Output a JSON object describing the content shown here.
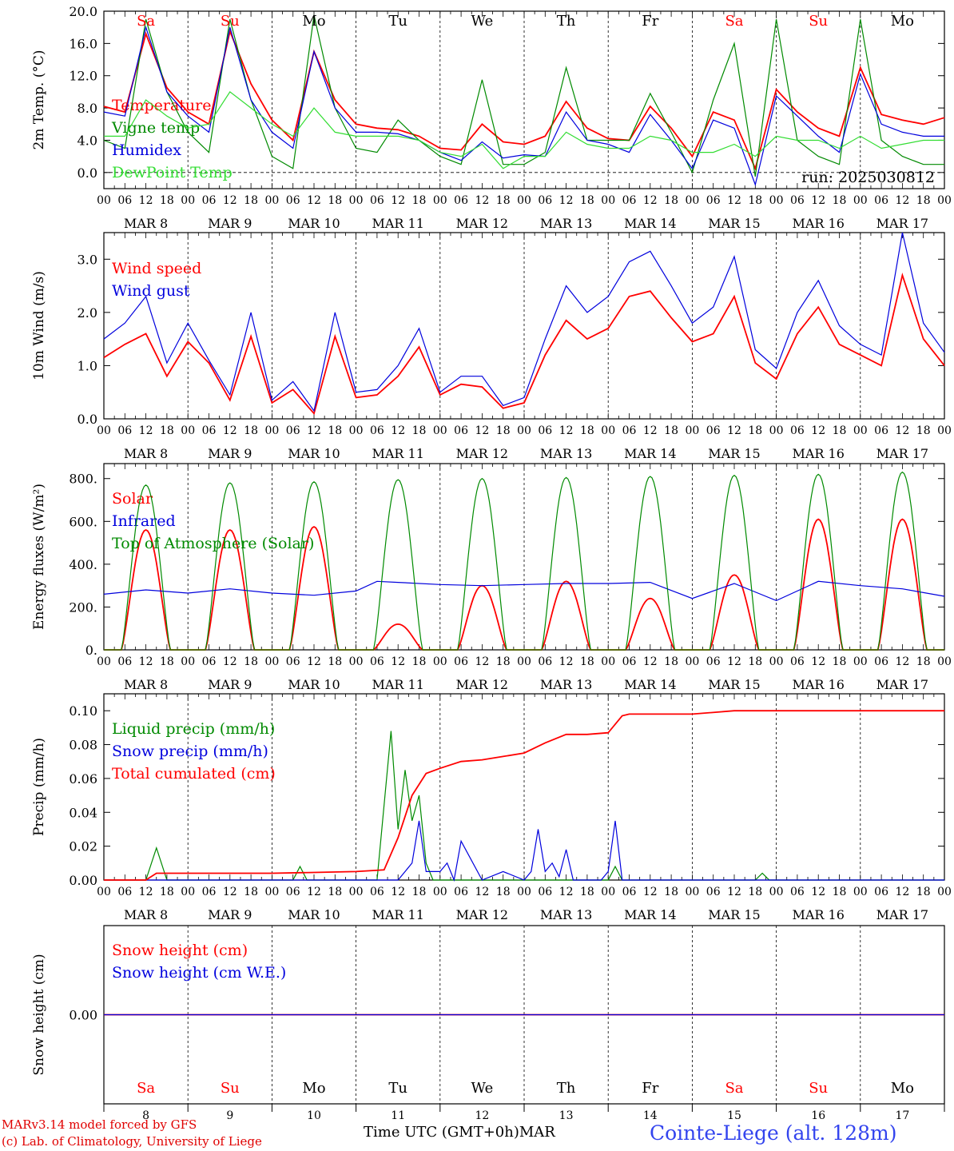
{
  "days": [
    {
      "abbr": "Sa",
      "date": "8",
      "weekend": true
    },
    {
      "abbr": "Su",
      "date": "9",
      "weekend": true
    },
    {
      "abbr": "Mo",
      "date": "10",
      "weekend": false
    },
    {
      "abbr": "Tu",
      "date": "11",
      "weekend": false
    },
    {
      "abbr": "We",
      "date": "12",
      "weekend": false
    },
    {
      "abbr": "Th",
      "date": "13",
      "weekend": false
    },
    {
      "abbr": "Fr",
      "date": "14",
      "weekend": false
    },
    {
      "abbr": "Sa",
      "date": "15",
      "weekend": true
    },
    {
      "abbr": "Su",
      "date": "16",
      "weekend": true
    },
    {
      "abbr": "Mo",
      "date": "17",
      "weekend": false
    }
  ],
  "hour_ticks": [
    "00",
    "06",
    "12",
    "18"
  ],
  "month": "MAR",
  "colors": {
    "red": "#ff0000",
    "green": "#008a00",
    "blue": "#0000dd",
    "lightgreen": "#33dd33"
  },
  "footer": {
    "model": "MARv3.14 model forced by GFS",
    "lab": "(c) Lab. of Climatology, University of Liege",
    "time_axis": "Time UTC (GMT+0h)",
    "month": "MAR",
    "station": "Cointe-Liege (alt. 128m)"
  },
  "chart_data": [
    {
      "type": "line",
      "ylabel": "2m Temp. (°C)",
      "yticks": [
        "0.0",
        "4.0",
        "8.0",
        "12.0",
        "16.0",
        "20.0"
      ],
      "ylim": [
        -2,
        20
      ],
      "zero_line": true,
      "annotation": "run: 2025030812",
      "x_hours": [
        0,
        6,
        12,
        18,
        24,
        30,
        36,
        42,
        48,
        54,
        60,
        66,
        72,
        78,
        84,
        90,
        96,
        102,
        108,
        114,
        120,
        126,
        132,
        138,
        144,
        150,
        156,
        162,
        168,
        174,
        180,
        186,
        192,
        198,
        204,
        210,
        216,
        222,
        228,
        234,
        240
      ],
      "series": [
        {
          "name": "Temperature",
          "color": "red",
          "values": [
            8.2,
            7.5,
            17.2,
            10.5,
            7.5,
            6,
            17.5,
            11,
            6.5,
            4,
            15,
            9,
            6,
            5.5,
            5.3,
            4.5,
            3,
            2.8,
            6,
            3.8,
            3.5,
            4.5,
            8.8,
            5.5,
            4.2,
            4,
            8.2,
            5.5,
            2,
            7.5,
            6.5,
            0.5,
            10.3,
            7.5,
            5.5,
            4.5,
            13,
            7.2,
            6.5,
            6,
            6.8
          ]
        },
        {
          "name": "Vigne temp",
          "color": "green",
          "values": [
            4,
            3,
            19,
            10,
            5,
            2.5,
            19,
            9,
            2,
            0.5,
            19.5,
            8,
            3,
            2.5,
            6.5,
            4,
            2,
            1,
            11.5,
            1,
            1,
            2.5,
            13,
            4,
            4,
            4,
            9.8,
            5,
            0,
            9,
            16,
            -0.5,
            19,
            4,
            2,
            1,
            19,
            4,
            2,
            1,
            1
          ]
        },
        {
          "name": "Humidex",
          "color": "blue",
          "values": [
            7.5,
            7,
            18,
            10,
            7,
            5,
            18,
            9,
            5,
            3,
            15,
            8,
            5,
            5,
            4.8,
            4,
            2.5,
            1.5,
            3.8,
            1.8,
            2.2,
            2,
            7.5,
            4,
            3.5,
            2.5,
            7.2,
            4,
            0.5,
            6.5,
            5.5,
            -1.5,
            9.5,
            7,
            4.5,
            2.5,
            12.2,
            6,
            5,
            4.5,
            4.5
          ]
        },
        {
          "name": "DewPoint Temp",
          "color": "lightgreen",
          "values": [
            4.5,
            4.5,
            9,
            7,
            5.5,
            6,
            10,
            8,
            6,
            4.5,
            8,
            5,
            4.5,
            4.5,
            4.5,
            4,
            2.5,
            2,
            3.5,
            0.5,
            2,
            2,
            5,
            3.5,
            3,
            3,
            4.5,
            4,
            2.5,
            2.5,
            3.5,
            2,
            4.5,
            4,
            4,
            3,
            4.5,
            3,
            3.5,
            4,
            4
          ]
        }
      ]
    },
    {
      "type": "line",
      "ylabel": "10m Wind (m/s)",
      "yticks": [
        "0.0",
        "1.0",
        "2.0",
        "3.0"
      ],
      "ylim": [
        0,
        3.5
      ],
      "x_hours": [
        0,
        6,
        12,
        18,
        24,
        30,
        36,
        42,
        48,
        54,
        60,
        66,
        72,
        78,
        84,
        90,
        96,
        102,
        108,
        114,
        120,
        126,
        132,
        138,
        144,
        150,
        156,
        162,
        168,
        174,
        180,
        186,
        192,
        198,
        204,
        210,
        216,
        222,
        228,
        234,
        240
      ],
      "series": [
        {
          "name": "Wind speed",
          "color": "red",
          "values": [
            1.15,
            1.4,
            1.6,
            0.8,
            1.45,
            1.05,
            0.35,
            1.55,
            0.3,
            0.55,
            0.1,
            1.55,
            0.4,
            0.45,
            0.8,
            1.35,
            0.45,
            0.65,
            0.6,
            0.2,
            0.3,
            1.2,
            1.85,
            1.5,
            1.7,
            2.3,
            2.4,
            1.9,
            1.45,
            1.6,
            2.3,
            1.05,
            0.75,
            1.6,
            2.1,
            1.4,
            1.2,
            1.0,
            2.7,
            1.5,
            1.0
          ]
        },
        {
          "name": "Wind gust",
          "color": "blue",
          "values": [
            1.5,
            1.8,
            2.3,
            1.05,
            1.8,
            1.1,
            0.45,
            2.0,
            0.35,
            0.7,
            0.15,
            2.0,
            0.5,
            0.55,
            1.0,
            1.7,
            0.5,
            0.8,
            0.8,
            0.25,
            0.4,
            1.5,
            2.5,
            2.0,
            2.3,
            2.95,
            3.15,
            2.5,
            1.8,
            2.1,
            3.05,
            1.3,
            0.95,
            2.0,
            2.6,
            1.75,
            1.4,
            1.2,
            3.5,
            1.8,
            1.25
          ]
        }
      ]
    },
    {
      "type": "line",
      "ylabel": "Energy fluxes (W/m²)",
      "yticks": [
        "0.",
        "200.",
        "400.",
        "600.",
        "800."
      ],
      "ylim": [
        0,
        870
      ],
      "daily_peak_hour": 12,
      "daily_halfwidth_hours": 7,
      "series": [
        {
          "name": "Solar",
          "color": "red",
          "daily_peaks": [
            560,
            560,
            575,
            120,
            300,
            320,
            240,
            350,
            610,
            610
          ]
        },
        {
          "name": "Infrared",
          "color": "blue",
          "x_hours": [
            0,
            12,
            24,
            36,
            48,
            60,
            72,
            78,
            84,
            96,
            108,
            120,
            132,
            144,
            156,
            168,
            180,
            192,
            204,
            216,
            228,
            240
          ],
          "values": [
            260,
            280,
            265,
            285,
            265,
            255,
            275,
            320,
            315,
            305,
            300,
            305,
            310,
            310,
            315,
            240,
            310,
            230,
            320,
            300,
            285,
            250
          ]
        },
        {
          "name": "Top of Atmosphere (Solar)",
          "color": "green",
          "daily_peaks": [
            770,
            780,
            785,
            795,
            800,
            805,
            810,
            815,
            820,
            830
          ]
        }
      ]
    },
    {
      "type": "line",
      "ylabel": "Precip (mm/h)",
      "yticks": [
        "0.00",
        "0.02",
        "0.04",
        "0.06",
        "0.08",
        "0.10"
      ],
      "ylim": [
        0,
        0.11
      ],
      "series": [
        {
          "name": "Liquid precip (mm/h)",
          "color": "green",
          "x_hours": [
            0,
            12,
            15,
            18,
            24,
            48,
            54,
            56,
            58,
            72,
            78,
            82,
            84,
            86,
            88,
            90,
            92,
            94,
            96,
            120,
            144,
            146,
            148,
            150,
            180,
            186,
            188,
            190,
            240
          ],
          "values": [
            0,
            0,
            0.019,
            0,
            0,
            0,
            0,
            0.008,
            0,
            0,
            0,
            0.088,
            0.03,
            0.065,
            0.035,
            0.05,
            0.01,
            0,
            0,
            0,
            0,
            0.008,
            0,
            0,
            0,
            0,
            0.004,
            0,
            0
          ]
        },
        {
          "name": "Snow precip (mm/h)",
          "color": "blue",
          "x_hours": [
            0,
            84,
            88,
            90,
            92,
            96,
            98,
            100,
            102,
            108,
            114,
            120,
            122,
            124,
            126,
            128,
            130,
            132,
            134,
            136,
            138,
            140,
            142,
            144,
            146,
            148,
            150,
            240
          ],
          "values": [
            0,
            0,
            0.01,
            0.035,
            0.005,
            0.005,
            0.01,
            0,
            0.023,
            0,
            0.005,
            0,
            0.005,
            0.03,
            0.005,
            0.01,
            0.002,
            0.018,
            0,
            0,
            0,
            0,
            0,
            0.005,
            0.035,
            0,
            0,
            0
          ]
        },
        {
          "name": "Total cumulated (cm)",
          "color": "red",
          "x_hours": [
            0,
            12,
            15,
            48,
            60,
            72,
            80,
            84,
            88,
            92,
            96,
            102,
            108,
            114,
            120,
            126,
            132,
            138,
            144,
            148,
            150,
            156,
            168,
            180,
            192,
            216,
            240
          ],
          "values": [
            0,
            0,
            0.004,
            0.004,
            0.0045,
            0.005,
            0.006,
            0.025,
            0.05,
            0.063,
            0.066,
            0.07,
            0.071,
            0.073,
            0.075,
            0.081,
            0.086,
            0.086,
            0.087,
            0.097,
            0.098,
            0.098,
            0.098,
            0.1,
            0.1,
            0.1,
            0.1
          ]
        }
      ]
    },
    {
      "type": "line",
      "ylabel": "Snow height (cm)",
      "yticks": [
        "0.00"
      ],
      "ylim": [
        -1,
        1
      ],
      "series": [
        {
          "name": "Snow height (cm)",
          "color": "red",
          "x_hours": [
            0,
            240
          ],
          "values": [
            0,
            0
          ]
        },
        {
          "name": "Snow height (cm W.E.)",
          "color": "blue",
          "x_hours": [
            0,
            240
          ],
          "values": [
            0,
            0
          ]
        }
      ]
    }
  ]
}
